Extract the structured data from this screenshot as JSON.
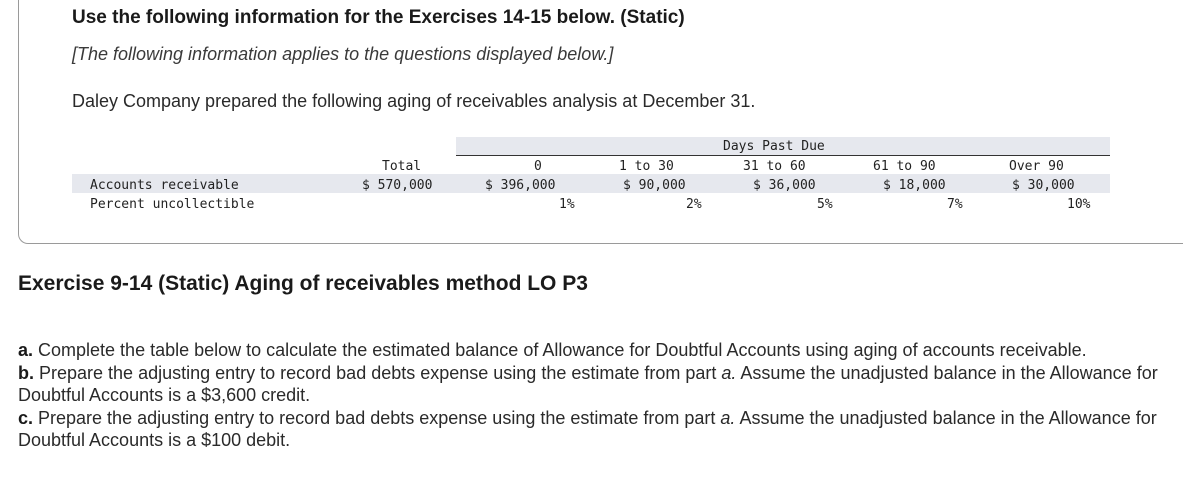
{
  "info": {
    "heading": "Use the following information for the Exercises 14-15 below. (Static)",
    "subnote": "[The following information applies to the questions displayed below.]",
    "intro": "Daley Company prepared the following aging of receivables analysis at December 31."
  },
  "aging_table": {
    "group_header": "Days Past Due",
    "columns": [
      "Total",
      "0",
      "1 to 30",
      "31 to 60",
      "61 to 90",
      "Over 90"
    ],
    "rows": [
      {
        "label": "Accounts receivable",
        "values": [
          "$ 570,000",
          "$ 396,000",
          "$ 90,000",
          "$ 36,000",
          "$ 18,000",
          "$ 30,000"
        ]
      },
      {
        "label": "Percent uncollectible",
        "values": [
          "",
          "1%",
          "2%",
          "5%",
          "7%",
          "10%"
        ]
      }
    ]
  },
  "exercise": {
    "title": "Exercise 9-14 (Static) Aging of receivables method LO P3",
    "parts": [
      {
        "letter": "a.",
        "text": " Complete the table below to calculate the estimated balance of Allowance for Doubtful Accounts using aging of accounts receivable."
      },
      {
        "letter": "b.",
        "text_before": " Prepare the adjusting entry to record bad debts expense using the estimate from part ",
        "ref": "a.",
        "text_after": " Assume the unadjusted balance in the Allowance for Doubtful Accounts is a $3,600 credit."
      },
      {
        "letter": "c.",
        "text_before": " Prepare the adjusting entry to record bad debts expense using the estimate from part ",
        "ref": "a.",
        "text_after": " Assume the unadjusted balance in the Allowance for Doubtful Accounts is a $100 debit."
      }
    ]
  }
}
